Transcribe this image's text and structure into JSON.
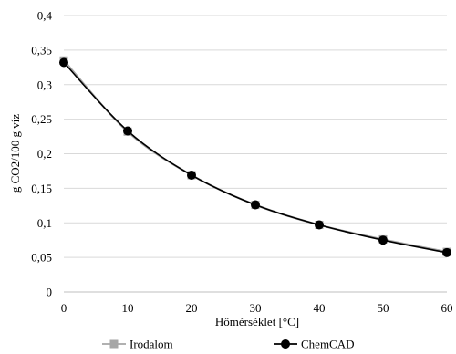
{
  "chart_data": {
    "type": "line",
    "title": "",
    "xlabel": "Hőmérséklet [°C]",
    "ylabel": "g CO2/100 g víz",
    "x": [
      0,
      10,
      20,
      30,
      40,
      50,
      60
    ],
    "xlim": [
      0,
      60
    ],
    "ylim": [
      0,
      0.4
    ],
    "x_ticks": [
      0,
      10,
      20,
      30,
      40,
      50,
      60
    ],
    "y_ticks": [
      0,
      0.05,
      0.1,
      0.15,
      0.2,
      0.25,
      0.3,
      0.35,
      0.4
    ],
    "x_tick_labels": [
      "0",
      "10",
      "20",
      "30",
      "40",
      "50",
      "60"
    ],
    "y_tick_labels": [
      "0",
      "0,05",
      "0,1",
      "0,15",
      "0,2",
      "0,25",
      "0,3",
      "0,35",
      "0,4"
    ],
    "grid": true,
    "legend_position": "bottom",
    "series": [
      {
        "name": "Irodalom",
        "marker": "square",
        "color": "#a6a6a6",
        "values": [
          0.335,
          0.232,
          0.169,
          0.126,
          0.097,
          0.076,
          0.058
        ]
      },
      {
        "name": "ChemCAD",
        "marker": "circle",
        "color": "#000000",
        "values": [
          0.332,
          0.233,
          0.169,
          0.126,
          0.097,
          0.075,
          0.057
        ]
      }
    ]
  }
}
